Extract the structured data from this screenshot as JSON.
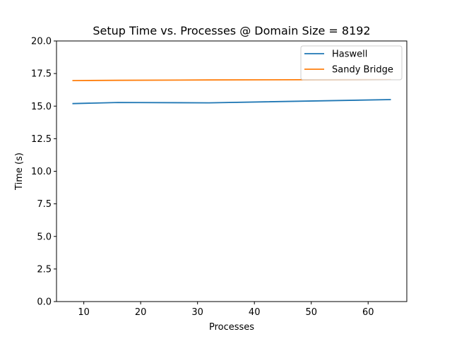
{
  "chart_data": {
    "type": "line",
    "title": "Setup Time vs. Processes @ Domain Size = 8192",
    "xlabel": "Processes",
    "ylabel": "Time (s)",
    "xlim": [
      5.2,
      66.8
    ],
    "ylim": [
      0.0,
      20.0
    ],
    "xticks": [
      10,
      20,
      30,
      40,
      50,
      60
    ],
    "yticks": [
      0.0,
      2.5,
      5.0,
      7.5,
      10.0,
      12.5,
      15.0,
      17.5,
      20.0
    ],
    "xtick_labels": [
      "10",
      "20",
      "30",
      "40",
      "50",
      "60"
    ],
    "ytick_labels": [
      "0.0",
      "2.5",
      "5.0",
      "7.5",
      "10.0",
      "12.5",
      "15.0",
      "17.5",
      "20.0"
    ],
    "grid": false,
    "legend_position": "top-right",
    "x": [
      8,
      16,
      32,
      64
    ],
    "series": [
      {
        "name": "Haswell",
        "color": "#1f77b4",
        "values": [
          15.19,
          15.28,
          15.25,
          15.5
        ]
      },
      {
        "name": "Sandy Bridge",
        "color": "#ff7f0e",
        "values": [
          16.96,
          16.98,
          17.01,
          17.04
        ]
      }
    ]
  }
}
